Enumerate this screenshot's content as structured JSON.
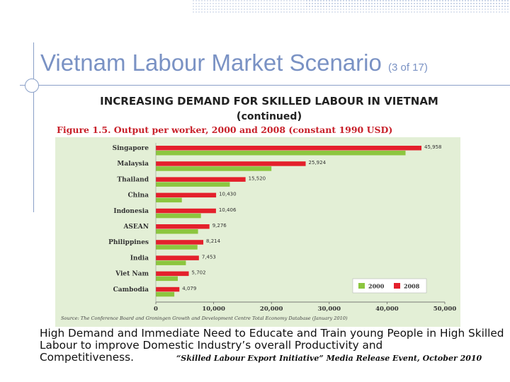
{
  "slide": {
    "title": "Vietnam Labour Market Scenario",
    "title_sub": "(3 of 17)",
    "heading_line1": "INCREASING DEMAND FOR SKILLED LABOUR IN VIETNAM",
    "heading_line2_prefix": "(",
    "heading_line2_bold": "continued",
    "heading_line2_suffix": ")",
    "body_text": "High Demand and Immediate Need to Educate and Train young People in High Skilled Labour to improve Domestic Industry’s overall Productivity and Competitiveness.",
    "quote": "“Skilled Labour Export Initiative” Media Release Event, October 2010"
  },
  "chart_data": {
    "type": "bar",
    "orientation": "horizontal",
    "title": "Figure 1.5. Output per worker, 2000 and 2008 (constant 1990 USD)",
    "source": "Source: The Conference Board and Groningen Growth and Development Centre Total Economy Database (January 2010)",
    "categories": [
      "Singapore",
      "Malaysia",
      "Thailand",
      "China",
      "Indonesia",
      "ASEAN",
      "Philippines",
      "India",
      "Viet Nam",
      "Cambodia"
    ],
    "series": [
      {
        "name": "2000",
        "color": "#8cc63f",
        "values": [
          43200,
          20000,
          12800,
          4500,
          7800,
          7300,
          7200,
          5200,
          3800,
          3200
        ]
      },
      {
        "name": "2008",
        "color": "#e4202c",
        "values": [
          45958,
          25924,
          15520,
          10430,
          10406,
          9276,
          8214,
          7453,
          5702,
          4079
        ]
      }
    ],
    "data_labels": [
      "45,958",
      "25,924",
      "15,520",
      "10,430",
      "10,406",
      "9,276",
      "8,214",
      "7,453",
      "5,702",
      "4,079"
    ],
    "xlim": [
      0,
      50000
    ],
    "xticks": [
      "0",
      "10,000",
      "20,000",
      "30,000",
      "40,000",
      "50,000"
    ],
    "legend_position": "bottom-right",
    "background_color": "#e3efd6"
  }
}
